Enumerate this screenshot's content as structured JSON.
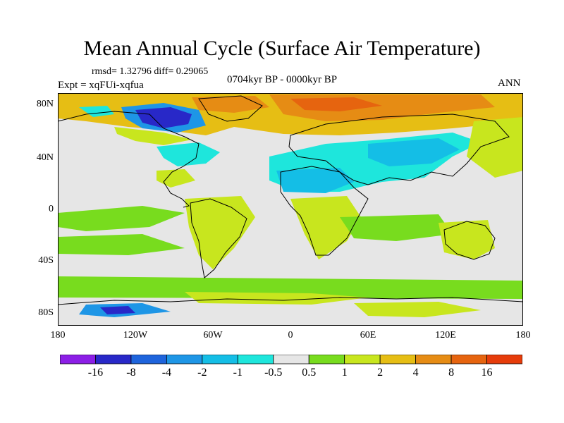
{
  "title": "Mean Annual Cycle (Surface Air Temperature)",
  "stats": "rmsd= 1.32796 diff= 0.29065",
  "experiment": "Expt = xqFUi-xqfua",
  "period": "0704kyr BP - 0000kyr BP",
  "season": "ANN",
  "lat_labels": [
    "80N",
    "40N",
    "0",
    "40S",
    "80S"
  ],
  "lon_labels": [
    "180",
    "120W",
    "60W",
    "0",
    "60E",
    "120E",
    "180"
  ],
  "colorbar": {
    "labels": [
      "-16",
      "-8",
      "-4",
      "-2",
      "-1",
      "-0.5",
      "0.5",
      "1",
      "2",
      "4",
      "8",
      "16"
    ],
    "colors": [
      "#8c1ee6",
      "#2828c8",
      "#1e64dc",
      "#1e96e6",
      "#14bee6",
      "#1ee6dc",
      "#e6e6e6",
      "#78dc1e",
      "#c8e61e",
      "#e6be14",
      "#e68c14",
      "#e6640f",
      "#e63c0a"
    ]
  },
  "colors": {
    "land_outline": "#000000",
    "neutral": "#e6e6e6",
    "warm_small": "#c8e61e",
    "warm_mid": "#e6be14",
    "warm_high": "#e68c14",
    "cool_small": "#1ee6dc",
    "cool_mid": "#14bee6",
    "cool_high": "#1e64dc"
  }
}
